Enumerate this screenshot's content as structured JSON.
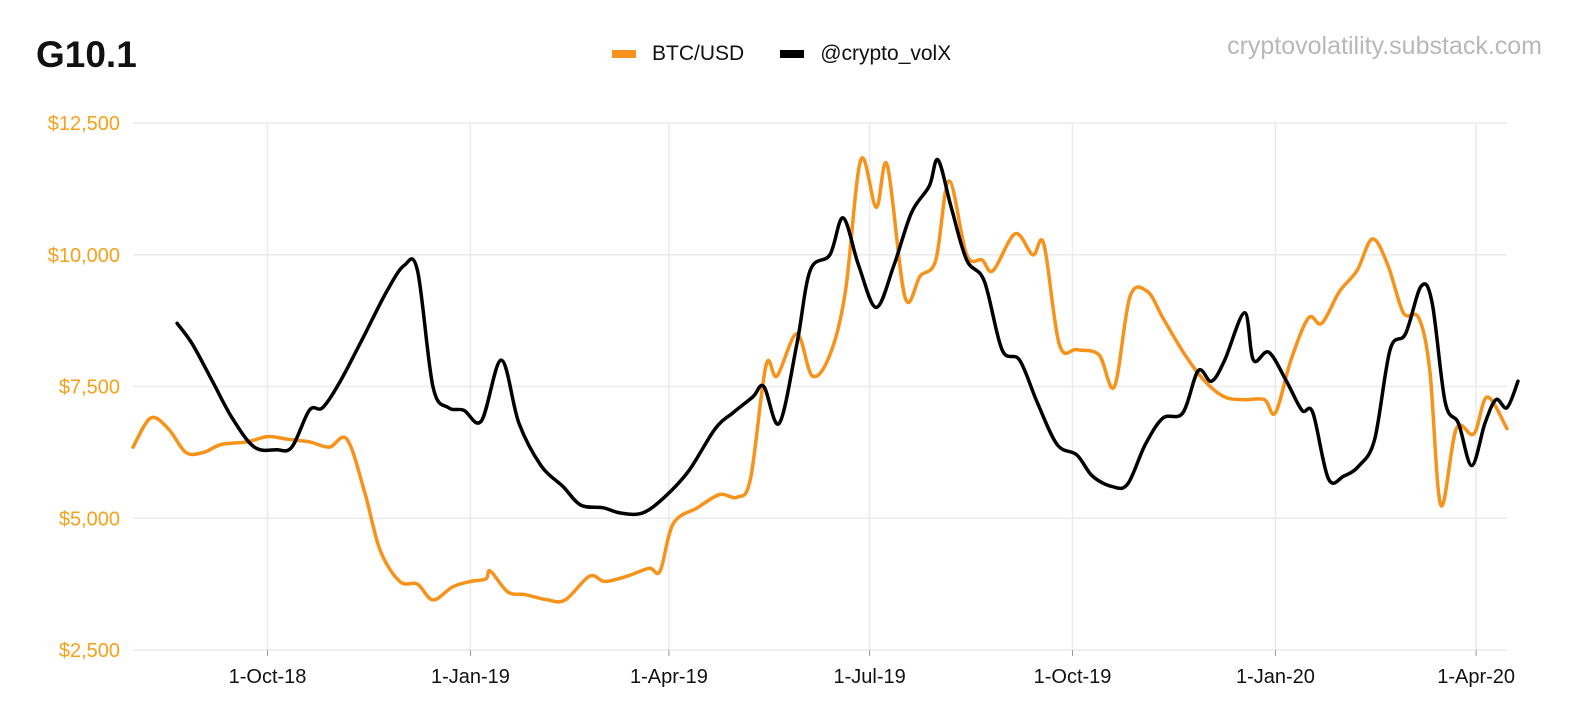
{
  "title": "G10.1",
  "watermark": "cryptovolatility.substack.com",
  "chart_data": {
    "type": "line",
    "title": "G10.1",
    "x_range": [
      "2018-08-01",
      "2020-04-15"
    ],
    "ylim": [
      2500,
      12500
    ],
    "y_ticks": [
      2500,
      5000,
      7500,
      10000,
      12500
    ],
    "y_tick_labels": [
      "$2,500",
      "$5,000",
      "$7,500",
      "$10,000",
      "$12,500"
    ],
    "x_ticks": [
      "2018-10-01",
      "2019-01-01",
      "2019-04-01",
      "2019-07-01",
      "2019-10-01",
      "2020-01-01",
      "2020-04-01"
    ],
    "x_tick_labels": [
      "1-Oct-18",
      "1-Jan-19",
      "1-Apr-19",
      "1-Jul-19",
      "1-Oct-19",
      "1-Jan-20",
      "1-Apr-20"
    ],
    "grid": true,
    "legend_position": "top-center",
    "series": [
      {
        "name": "BTC/USD",
        "color": "#f7931a",
        "points": [
          [
            "2018-08-01",
            6350
          ],
          [
            "2018-08-09",
            6900
          ],
          [
            "2018-08-17",
            6700
          ],
          [
            "2018-08-25",
            6250
          ],
          [
            "2018-09-02",
            6250
          ],
          [
            "2018-09-10",
            6400
          ],
          [
            "2018-09-22",
            6450
          ],
          [
            "2018-10-01",
            6550
          ],
          [
            "2018-10-10",
            6500
          ],
          [
            "2018-10-20",
            6450
          ],
          [
            "2018-10-29",
            6350
          ],
          [
            "2018-11-06",
            6500
          ],
          [
            "2018-11-14",
            5500
          ],
          [
            "2018-11-21",
            4400
          ],
          [
            "2018-11-30",
            3800
          ],
          [
            "2018-12-08",
            3750
          ],
          [
            "2018-12-15",
            3450
          ],
          [
            "2018-12-24",
            3700
          ],
          [
            "2019-01-01",
            3800
          ],
          [
            "2019-01-08",
            3850
          ],
          [
            "2019-01-10",
            4000
          ],
          [
            "2019-01-18",
            3600
          ],
          [
            "2019-01-26",
            3550
          ],
          [
            "2019-02-05",
            3450
          ],
          [
            "2019-02-13",
            3450
          ],
          [
            "2019-02-24",
            3900
          ],
          [
            "2019-03-03",
            3800
          ],
          [
            "2019-03-13",
            3900
          ],
          [
            "2019-03-23",
            4050
          ],
          [
            "2019-03-28",
            4000
          ],
          [
            "2019-04-03",
            4900
          ],
          [
            "2019-04-14",
            5200
          ],
          [
            "2019-04-24",
            5450
          ],
          [
            "2019-05-02",
            5400
          ],
          [
            "2019-05-08",
            5750
          ],
          [
            "2019-05-15",
            7900
          ],
          [
            "2019-05-20",
            7700
          ],
          [
            "2019-05-29",
            8500
          ],
          [
            "2019-06-05",
            7700
          ],
          [
            "2019-06-13",
            8100
          ],
          [
            "2019-06-20",
            9300
          ],
          [
            "2019-06-27",
            11800
          ],
          [
            "2019-07-04",
            10900
          ],
          [
            "2019-07-09",
            11700
          ],
          [
            "2019-07-17",
            9200
          ],
          [
            "2019-07-24",
            9600
          ],
          [
            "2019-07-31",
            9900
          ],
          [
            "2019-08-06",
            11400
          ],
          [
            "2019-08-14",
            10000
          ],
          [
            "2019-08-21",
            9900
          ],
          [
            "2019-08-26",
            9700
          ],
          [
            "2019-09-05",
            10400
          ],
          [
            "2019-09-13",
            10000
          ],
          [
            "2019-09-18",
            10200
          ],
          [
            "2019-09-25",
            8300
          ],
          [
            "2019-10-03",
            8200
          ],
          [
            "2019-10-13",
            8100
          ],
          [
            "2019-10-20",
            7500
          ],
          [
            "2019-10-27",
            9200
          ],
          [
            "2019-11-04",
            9300
          ],
          [
            "2019-11-11",
            8800
          ],
          [
            "2019-11-21",
            8100
          ],
          [
            "2019-11-30",
            7600
          ],
          [
            "2019-12-09",
            7300
          ],
          [
            "2019-12-18",
            7250
          ],
          [
            "2019-12-27",
            7250
          ],
          [
            "2020-01-01",
            7000
          ],
          [
            "2020-01-08",
            8000
          ],
          [
            "2020-01-16",
            8800
          ],
          [
            "2020-01-22",
            8700
          ],
          [
            "2020-01-30",
            9300
          ],
          [
            "2020-02-07",
            9700
          ],
          [
            "2020-02-14",
            10300
          ],
          [
            "2020-02-21",
            9800
          ],
          [
            "2020-02-28",
            8900
          ],
          [
            "2020-03-06",
            8800
          ],
          [
            "2020-03-11",
            7800
          ],
          [
            "2020-03-16",
            5250
          ],
          [
            "2020-03-23",
            6700
          ],
          [
            "2020-03-31",
            6600
          ],
          [
            "2020-04-06",
            7300
          ],
          [
            "2020-04-15",
            6700
          ]
        ]
      },
      {
        "name": "@crypto_volX",
        "color": "#000000",
        "points": [
          [
            "2018-08-21",
            8700
          ],
          [
            "2018-08-28",
            8300
          ],
          [
            "2018-09-06",
            7600
          ],
          [
            "2018-09-15",
            6900
          ],
          [
            "2018-09-25",
            6350
          ],
          [
            "2018-10-05",
            6300
          ],
          [
            "2018-10-12",
            6350
          ],
          [
            "2018-10-20",
            7050
          ],
          [
            "2018-10-26",
            7100
          ],
          [
            "2018-11-03",
            7600
          ],
          [
            "2018-11-13",
            8400
          ],
          [
            "2018-11-24",
            9300
          ],
          [
            "2018-12-02",
            9800
          ],
          [
            "2018-12-08",
            9700
          ],
          [
            "2018-12-15",
            7500
          ],
          [
            "2018-12-22",
            7100
          ],
          [
            "2018-12-29",
            7050
          ],
          [
            "2019-01-06",
            6850
          ],
          [
            "2019-01-15",
            8000
          ],
          [
            "2019-01-23",
            6800
          ],
          [
            "2019-02-02",
            6000
          ],
          [
            "2019-02-12",
            5600
          ],
          [
            "2019-02-20",
            5250
          ],
          [
            "2019-03-02",
            5200
          ],
          [
            "2019-03-10",
            5100
          ],
          [
            "2019-03-20",
            5100
          ],
          [
            "2019-03-30",
            5400
          ],
          [
            "2019-04-10",
            5900
          ],
          [
            "2019-04-22",
            6700
          ],
          [
            "2019-04-30",
            7000
          ],
          [
            "2019-05-09",
            7300
          ],
          [
            "2019-05-14",
            7500
          ],
          [
            "2019-05-21",
            6800
          ],
          [
            "2019-05-29",
            8300
          ],
          [
            "2019-06-04",
            9700
          ],
          [
            "2019-06-13",
            10000
          ],
          [
            "2019-06-19",
            10700
          ],
          [
            "2019-06-26",
            9800
          ],
          [
            "2019-07-04",
            9000
          ],
          [
            "2019-07-12",
            9800
          ],
          [
            "2019-07-20",
            10800
          ],
          [
            "2019-07-28",
            11300
          ],
          [
            "2019-08-01",
            11800
          ],
          [
            "2019-08-07",
            10900
          ],
          [
            "2019-08-14",
            9900
          ],
          [
            "2019-08-22",
            9500
          ],
          [
            "2019-08-30",
            8200
          ],
          [
            "2019-09-07",
            8000
          ],
          [
            "2019-09-15",
            7200
          ],
          [
            "2019-09-24",
            6400
          ],
          [
            "2019-10-03",
            6200
          ],
          [
            "2019-10-10",
            5800
          ],
          [
            "2019-10-19",
            5600
          ],
          [
            "2019-10-26",
            5650
          ],
          [
            "2019-11-03",
            6400
          ],
          [
            "2019-11-11",
            6900
          ],
          [
            "2019-11-20",
            7000
          ],
          [
            "2019-11-27",
            7800
          ],
          [
            "2019-12-03",
            7600
          ],
          [
            "2019-12-09",
            8000
          ],
          [
            "2019-12-18",
            8900
          ],
          [
            "2019-12-22",
            8000
          ],
          [
            "2019-12-29",
            8150
          ],
          [
            "2020-01-06",
            7600
          ],
          [
            "2020-01-13",
            7050
          ],
          [
            "2020-01-18",
            7000
          ],
          [
            "2020-01-25",
            5750
          ],
          [
            "2020-02-01",
            5800
          ],
          [
            "2020-02-08",
            6000
          ],
          [
            "2020-02-15",
            6500
          ],
          [
            "2020-02-22",
            8200
          ],
          [
            "2020-02-29",
            8500
          ],
          [
            "2020-03-07",
            9400
          ],
          [
            "2020-03-12",
            9100
          ],
          [
            "2020-03-18",
            7200
          ],
          [
            "2020-03-24",
            6800
          ],
          [
            "2020-03-30",
            6000
          ],
          [
            "2020-04-05",
            6800
          ],
          [
            "2020-04-10",
            7250
          ],
          [
            "2020-04-15",
            7100
          ],
          [
            "2020-04-20",
            7600
          ]
        ]
      }
    ]
  }
}
